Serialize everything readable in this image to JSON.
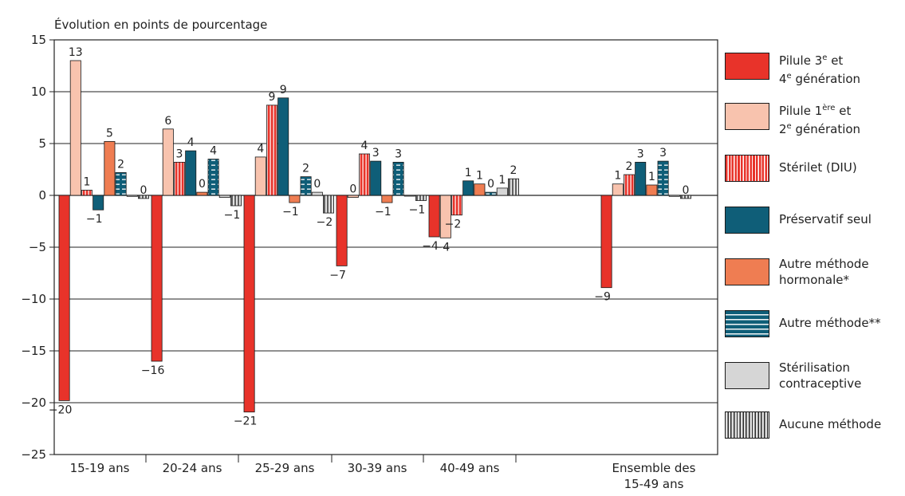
{
  "chart_data": {
    "type": "bar",
    "ylabel": "Évolution en points de pourcentage",
    "ylim": [
      -25,
      15
    ],
    "yticks": [
      "15",
      "10",
      "5",
      "0",
      "−5",
      "−10",
      "−15",
      "−20",
      "−25"
    ],
    "grid": true,
    "legend_position": "right",
    "categories": [
      "15-19 ans",
      "20-24 ans",
      "25-29 ans",
      "30-39 ans",
      "40-49 ans",
      "Ensemble des 15-49 ans"
    ],
    "series": [
      {
        "name": "Pilule 3e et 4e génération",
        "color": "#e8332a",
        "pattern": "solid",
        "values": [
          -19.8,
          -16.0,
          -20.9,
          -6.8,
          -4.0,
          -8.9
        ],
        "labels": [
          "−20",
          "−16",
          "−21",
          "−7",
          "−4",
          "−9"
        ]
      },
      {
        "name": "Pilule 1ère et 2e génération",
        "color": "#f8c3ae",
        "pattern": "solid",
        "values": [
          13.0,
          6.4,
          3.7,
          -0.2,
          -4.1,
          1.1
        ],
        "labels": [
          "13",
          "6",
          "4",
          "0",
          "−4",
          "1"
        ]
      },
      {
        "name": "Stérilet (DIU)",
        "color": "#e8332a",
        "pattern": "vstripe",
        "values": [
          0.5,
          3.2,
          8.7,
          4.0,
          -1.9,
          2.0
        ],
        "labels": [
          "1",
          "3",
          "9",
          "4",
          "−2",
          "2"
        ]
      },
      {
        "name": "Préservatif seul",
        "color": "#0f5e78",
        "pattern": "solid",
        "values": [
          -1.4,
          4.3,
          9.4,
          3.3,
          1.4,
          3.2
        ],
        "labels": [
          "−1",
          "4",
          "9",
          "3",
          "1",
          "3"
        ]
      },
      {
        "name": "Autre méthode hormonale*",
        "color": "#ef7d52",
        "pattern": "solid",
        "values": [
          5.2,
          0.3,
          -0.7,
          -0.7,
          1.1,
          1.0
        ],
        "labels": [
          "5",
          "0",
          "−1",
          "−1",
          "1",
          "1"
        ]
      },
      {
        "name": "Autre méthode**",
        "color": "#0f5e78",
        "pattern": "dash",
        "values": [
          2.2,
          3.5,
          1.8,
          3.2,
          0.3,
          3.3
        ],
        "labels": [
          "2",
          "4",
          "2",
          "3",
          "0",
          "3"
        ]
      },
      {
        "name": "Stérilisation contraceptive",
        "color": "#d6d6d6",
        "pattern": "solid",
        "values": [
          -0.1,
          -0.2,
          0.3,
          0.0,
          0.7,
          -0.1
        ],
        "labels": [
          "",
          "",
          "0",
          "",
          "1",
          ""
        ]
      },
      {
        "name": "Aucune méthode",
        "color": "#d6d6d6",
        "pattern": "vstripe-dark",
        "values": [
          -0.3,
          -1.0,
          -1.7,
          -0.5,
          1.6,
          -0.3
        ],
        "labels": [
          "0",
          "−1",
          "−2",
          "−1",
          "2",
          "0"
        ]
      }
    ]
  },
  "legend": {
    "items": [
      {
        "line1": "Pilule 3",
        "sup1": "e",
        "rest1": " et",
        "line2": "4",
        "sup2": "e",
        "rest2": " génération"
      },
      {
        "line1": "Pilule 1",
        "sup1": "ère",
        "rest1": " et",
        "line2": "2",
        "sup2": "e",
        "rest2": " génération"
      },
      {
        "line1": "Stérilet (DIU)",
        "sup1": "",
        "rest1": "",
        "line2": "",
        "sup2": "",
        "rest2": ""
      },
      {
        "line1": "Préservatif seul",
        "sup1": "",
        "rest1": "",
        "line2": "",
        "sup2": "",
        "rest2": ""
      },
      {
        "line1": "Autre méthode",
        "sup1": "",
        "rest1": "",
        "line2": "hormonale*",
        "sup2": "",
        "rest2": ""
      },
      {
        "line1": "Autre méthode**",
        "sup1": "",
        "rest1": "",
        "line2": "",
        "sup2": "",
        "rest2": ""
      },
      {
        "line1": "Stérilisation",
        "sup1": "",
        "rest1": "",
        "line2": "contraceptive",
        "sup2": "",
        "rest2": ""
      },
      {
        "line1": "Aucune méthode",
        "sup1": "",
        "rest1": "",
        "line2": "",
        "sup2": "",
        "rest2": ""
      }
    ]
  }
}
